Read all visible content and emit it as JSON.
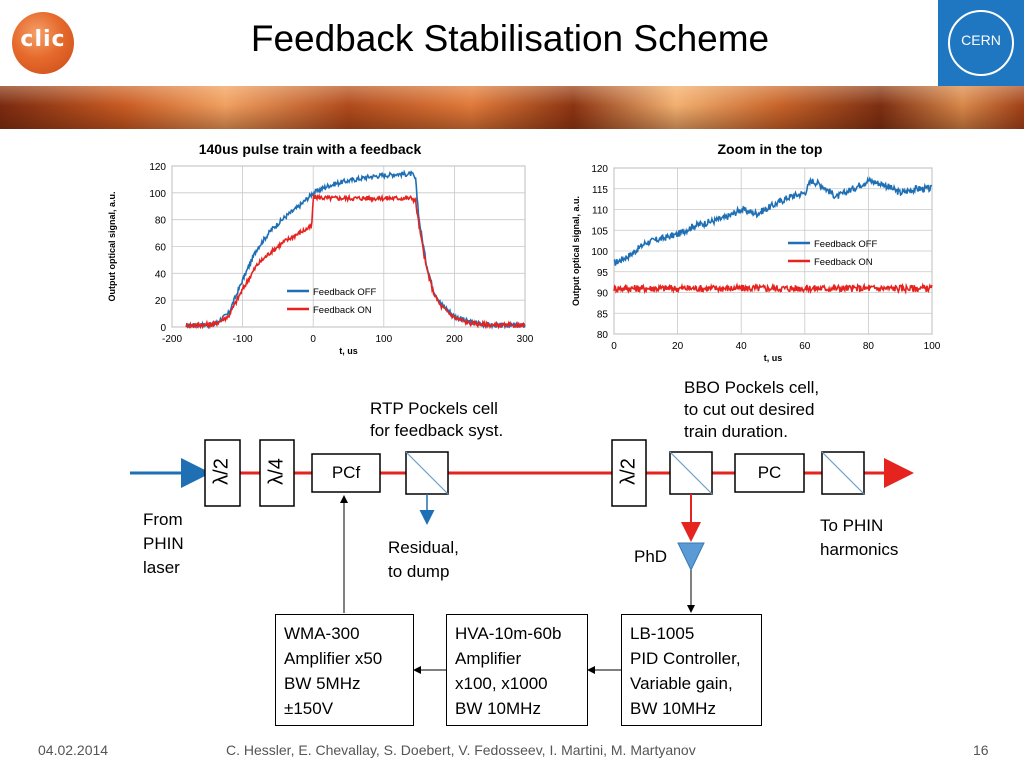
{
  "slide": {
    "title": "Feedback Stabilisation Scheme",
    "logo_left_text": "clic",
    "logo_right_text": "CERN",
    "footer_date": "04.02.2014",
    "footer_authors": "C. Hessler, E. Chevallay, S. Doebert, V. Fedosseev, I. Martini, M. Martyanov",
    "footer_page": "16"
  },
  "colors": {
    "off": "#1f6fb4",
    "on": "#e52420",
    "beam": "#e52420",
    "input_beam": "#1f6fb4"
  },
  "chart_data": [
    {
      "type": "line",
      "title": "140us pulse train with a feedback",
      "xlabel": "t, us",
      "ylabel": "Output optical signal, a.u.",
      "xlim": [
        -200,
        300
      ],
      "ylim": [
        0,
        120
      ],
      "xticks": [
        -200,
        -100,
        0,
        100,
        200,
        300
      ],
      "yticks": [
        0,
        20,
        40,
        60,
        80,
        100,
        120
      ],
      "grid": true,
      "legend": "lower-center",
      "series": [
        {
          "name": "Feedback OFF",
          "color": "#1f6fb4",
          "x": [
            -180,
            -140,
            -120,
            -100,
            -80,
            -60,
            -40,
            -20,
            0,
            20,
            40,
            60,
            80,
            100,
            120,
            140,
            145,
            150,
            160,
            170,
            180,
            200,
            220,
            240,
            260,
            280,
            300
          ],
          "y": [
            1,
            2,
            10,
            35,
            58,
            72,
            82,
            90,
            100,
            105,
            108,
            110,
            112,
            113,
            114,
            114,
            110,
            80,
            48,
            28,
            18,
            8,
            4,
            2,
            1,
            1,
            1
          ]
        },
        {
          "name": "Feedback ON",
          "color": "#e52420",
          "x": [
            -180,
            -140,
            -120,
            -100,
            -80,
            -60,
            -40,
            -20,
            -2,
            0,
            20,
            40,
            60,
            80,
            100,
            120,
            140,
            145,
            150,
            160,
            170,
            180,
            200,
            220,
            240,
            260,
            280,
            300
          ],
          "y": [
            1,
            2,
            8,
            28,
            46,
            56,
            64,
            70,
            75,
            97,
            96,
            96,
            96,
            96,
            96,
            96,
            96,
            94,
            75,
            45,
            26,
            16,
            7,
            3,
            2,
            1,
            1,
            1
          ]
        }
      ]
    },
    {
      "type": "line",
      "title": "Zoom in the top",
      "xlabel": "t, us",
      "ylabel": "Output optical signal, a.u.",
      "xlim": [
        0,
        100
      ],
      "ylim": [
        80,
        120
      ],
      "xticks": [
        0,
        20,
        40,
        60,
        80,
        100
      ],
      "yticks": [
        80,
        85,
        90,
        95,
        100,
        105,
        110,
        115,
        120
      ],
      "grid": true,
      "legend": "right",
      "series": [
        {
          "name": "Feedback OFF",
          "color": "#1f6fb4",
          "x": [
            0,
            5,
            10,
            15,
            20,
            25,
            30,
            35,
            40,
            45,
            50,
            55,
            60,
            62,
            65,
            70,
            75,
            80,
            85,
            90,
            95,
            100
          ],
          "y": [
            97,
            99,
            102,
            103,
            104,
            106,
            107,
            108,
            110,
            109,
            111,
            113,
            114,
            117,
            116,
            113,
            115,
            117,
            116,
            114,
            115,
            115
          ]
        },
        {
          "name": "Feedback ON",
          "color": "#e52420",
          "x": [
            0,
            10,
            20,
            30,
            40,
            50,
            60,
            70,
            80,
            90,
            100
          ],
          "y": [
            91,
            91,
            91,
            91,
            91,
            91,
            91,
            91,
            91,
            91,
            91
          ]
        }
      ]
    }
  ],
  "diagram": {
    "lambda2": "λ/2",
    "lambda4": "λ/4",
    "pcf": "PCf",
    "pc": "PC",
    "rtp_label": "RTP Pockels cell\nfor feedback syst.",
    "bbo_label": "BBO Pockels cell,\nto  cut out desired\ntrain duration.",
    "from_label": "From\nPHIN\nlaser",
    "to_label": "To PHIN\nharmonics",
    "residual_label": "Residual,\nto dump",
    "phd_label": "PhD",
    "wma_box": "WMA-300\nAmplifier x50\nBW 5MHz\n±150V",
    "hva_box": "HVA-10m-60b\nAmplifier\nx100, x1000\nBW 10MHz",
    "lb_box": "LB-1005\nPID Controller,\nVariable gain,\nBW 10MHz"
  }
}
